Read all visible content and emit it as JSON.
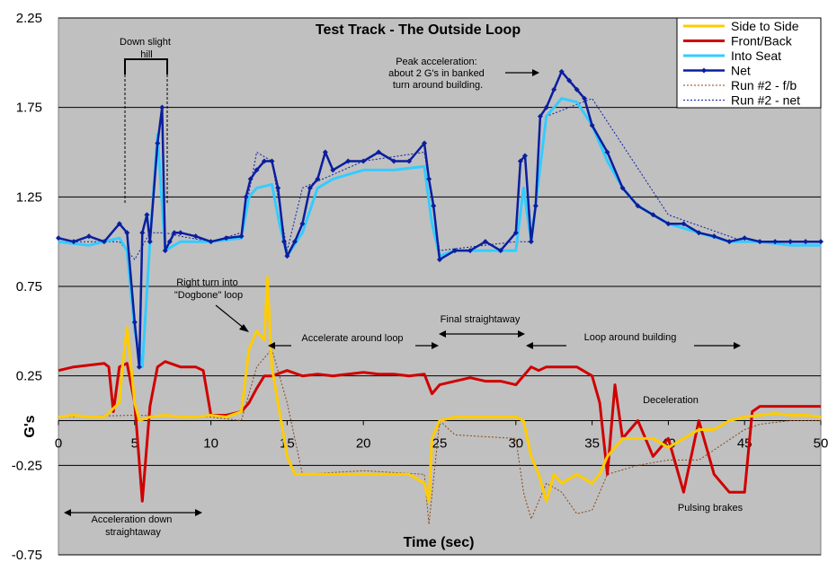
{
  "chart_data": {
    "type": "line",
    "title": "Test Track - The Outside Loop",
    "xlabel": "Time (sec)",
    "ylabel": "G's",
    "xlim": [
      0,
      50
    ],
    "ylim": [
      -0.75,
      2.25
    ],
    "x_ticks": [
      "0",
      "5",
      "10",
      "15",
      "20",
      "25",
      "30",
      "35",
      "40",
      "45",
      "50"
    ],
    "y_ticks": [
      "2.25",
      "1.75",
      "1.25",
      "0.75",
      "0.25",
      "-0.25",
      "-0.75"
    ],
    "y_tick_values": [
      2.25,
      1.75,
      1.25,
      0.75,
      0.25,
      -0.25,
      -0.75
    ],
    "grid": "horizontal",
    "legend_position": "top-right",
    "colors": {
      "side_to_side": "#FFCC00",
      "front_back": "#D00000",
      "into_seat": "#33CCFF",
      "net": "#0A1E9E",
      "run2_fb": "#8B4513",
      "run2_net": "#0A1E9E",
      "plot_background": "#C0C0C0"
    },
    "legend": [
      "Side to Side",
      "Front/Back",
      "Into Seat",
      "Net",
      "Run #2 - f/b",
      "Run #2 - net"
    ],
    "series": [
      {
        "name": "Side to Side",
        "x": [
          0,
          1,
          2,
          3,
          4,
          4.2,
          4.5,
          5,
          5.3,
          6,
          7,
          8,
          9,
          10,
          11,
          12,
          12.5,
          13,
          13.5,
          13.7,
          14,
          14.5,
          15,
          15.5,
          16,
          17,
          18,
          19,
          20,
          21,
          22,
          23,
          24,
          24.3,
          24.5,
          25,
          26,
          27,
          28,
          29,
          30,
          30.5,
          31,
          31.5,
          32,
          32.5,
          33,
          34,
          35,
          35.5,
          36,
          37,
          38,
          39,
          40,
          41,
          42,
          43,
          44,
          45,
          46,
          47,
          48,
          49,
          50
        ],
        "y": [
          0.02,
          0.03,
          0.02,
          0.02,
          0.1,
          0.3,
          0.52,
          0.1,
          0.0,
          0.02,
          0.03,
          0.02,
          0.02,
          0.03,
          0.02,
          0.05,
          0.4,
          0.5,
          0.45,
          0.8,
          0.3,
          0.05,
          -0.2,
          -0.3,
          -0.3,
          -0.3,
          -0.3,
          -0.3,
          -0.3,
          -0.3,
          -0.3,
          -0.3,
          -0.35,
          -0.45,
          -0.1,
          0.0,
          0.02,
          0.02,
          0.02,
          0.02,
          0.02,
          0.0,
          -0.2,
          -0.3,
          -0.45,
          -0.3,
          -0.35,
          -0.3,
          -0.35,
          -0.3,
          -0.2,
          -0.1,
          -0.1,
          -0.1,
          -0.15,
          -0.1,
          -0.05,
          -0.05,
          0.0,
          0.02,
          0.03,
          0.04,
          0.03,
          0.03,
          0.02
        ]
      },
      {
        "name": "Front/Back",
        "x": [
          0,
          1,
          2,
          3,
          3.3,
          3.6,
          4,
          4.5,
          5,
          5.5,
          6,
          6.5,
          7,
          8,
          9,
          9.5,
          10,
          11,
          12,
          12.5,
          13,
          13.5,
          14,
          15,
          16,
          17,
          18,
          19,
          20,
          21,
          22,
          23,
          24,
          24.5,
          25,
          26,
          27,
          28,
          29,
          30,
          31,
          31.5,
          32,
          33,
          34,
          35,
          35.5,
          36,
          36.5,
          37,
          38,
          39,
          40,
          41,
          42,
          43,
          44,
          45,
          45.5,
          46,
          47,
          48,
          49,
          50
        ],
        "y": [
          0.28,
          0.3,
          0.31,
          0.32,
          0.3,
          0.05,
          0.3,
          0.32,
          0.1,
          -0.45,
          0.08,
          0.3,
          0.33,
          0.3,
          0.3,
          0.28,
          0.03,
          0.03,
          0.05,
          0.1,
          0.18,
          0.25,
          0.25,
          0.28,
          0.25,
          0.26,
          0.25,
          0.26,
          0.27,
          0.26,
          0.26,
          0.25,
          0.26,
          0.15,
          0.2,
          0.22,
          0.24,
          0.22,
          0.22,
          0.2,
          0.3,
          0.28,
          0.3,
          0.3,
          0.3,
          0.25,
          0.1,
          -0.3,
          0.2,
          -0.1,
          0.0,
          -0.2,
          -0.1,
          -0.4,
          0.0,
          -0.3,
          -0.4,
          -0.4,
          0.05,
          0.08,
          0.08,
          0.08,
          0.08,
          0.08
        ]
      },
      {
        "name": "Into Seat",
        "x": [
          0,
          2,
          4,
          4.5,
          5,
          5.5,
          6,
          6.5,
          7,
          8,
          10,
          12,
          12.5,
          13,
          14,
          14.5,
          15,
          16,
          17,
          18,
          20,
          22,
          24,
          24.5,
          25,
          26,
          28,
          30,
          30.5,
          31,
          32,
          33,
          34,
          35,
          36,
          37,
          38,
          40,
          42,
          44,
          46,
          48,
          50
        ],
        "y": [
          1.0,
          0.98,
          1.02,
          0.95,
          0.5,
          0.3,
          1.0,
          1.6,
          0.95,
          1.0,
          1.0,
          1.02,
          1.25,
          1.3,
          1.32,
          1.1,
          0.92,
          1.05,
          1.3,
          1.35,
          1.4,
          1.4,
          1.42,
          1.1,
          0.92,
          0.95,
          0.95,
          0.95,
          1.3,
          1.0,
          1.7,
          1.8,
          1.78,
          1.65,
          1.45,
          1.3,
          1.2,
          1.1,
          1.05,
          1.0,
          1.0,
          0.98,
          0.98
        ]
      },
      {
        "name": "Net",
        "x": [
          0,
          1,
          2,
          3,
          4,
          4.5,
          5,
          5.3,
          5.5,
          5.8,
          6,
          6.5,
          6.8,
          7,
          7.3,
          7.6,
          8,
          9,
          10,
          11,
          12,
          12.3,
          12.6,
          13,
          13.5,
          14,
          14.4,
          14.8,
          15,
          15.5,
          16,
          16.5,
          17,
          17.5,
          18,
          19,
          20,
          21,
          22,
          23,
          24,
          24.3,
          24.6,
          25,
          26,
          27,
          28,
          29,
          30,
          30.3,
          30.6,
          31,
          31.3,
          31.6,
          32,
          32.5,
          33,
          33.5,
          34,
          34.5,
          35,
          36,
          37,
          38,
          39,
          40,
          41,
          42,
          43,
          44,
          45,
          46,
          47,
          48,
          49,
          50
        ],
        "y": [
          1.02,
          1.0,
          1.03,
          1.0,
          1.1,
          1.05,
          0.55,
          0.3,
          1.05,
          1.15,
          1.0,
          1.55,
          1.75,
          0.95,
          1.0,
          1.05,
          1.05,
          1.03,
          1.0,
          1.02,
          1.03,
          1.25,
          1.35,
          1.4,
          1.45,
          1.45,
          1.3,
          1.0,
          0.92,
          1.0,
          1.1,
          1.3,
          1.35,
          1.5,
          1.4,
          1.45,
          1.45,
          1.5,
          1.45,
          1.45,
          1.55,
          1.35,
          1.2,
          0.9,
          0.95,
          0.95,
          1.0,
          0.95,
          1.05,
          1.45,
          1.48,
          1.0,
          1.2,
          1.7,
          1.75,
          1.85,
          1.95,
          1.9,
          1.85,
          1.8,
          1.65,
          1.5,
          1.3,
          1.2,
          1.15,
          1.1,
          1.1,
          1.05,
          1.03,
          1.0,
          1.02,
          1.0,
          1.0,
          1.0,
          1.0,
          1.0
        ]
      },
      {
        "name": "Run #2 - f/b",
        "x": [
          0,
          5,
          10,
          12,
          13,
          14,
          15,
          16,
          20,
          24,
          24.3,
          25,
          26,
          30,
          30.5,
          31,
          32,
          33,
          34,
          35,
          36,
          38,
          40,
          42,
          45,
          46,
          48,
          50
        ],
        "y": [
          0.02,
          0.03,
          0.02,
          0.0,
          0.3,
          0.4,
          0.1,
          -0.3,
          -0.28,
          -0.3,
          -0.58,
          0.0,
          -0.08,
          -0.1,
          -0.4,
          -0.55,
          -0.35,
          -0.4,
          -0.52,
          -0.5,
          -0.3,
          -0.25,
          -0.22,
          -0.22,
          -0.05,
          -0.02,
          0.0,
          0.0
        ]
      },
      {
        "name": "Run #2 - net",
        "x": [
          0,
          4,
          5,
          6,
          7,
          8,
          10,
          12,
          13,
          14,
          15,
          16,
          20,
          24,
          25,
          30,
          31,
          32,
          35,
          40,
          45,
          50
        ],
        "y": [
          1.0,
          1.0,
          0.9,
          1.05,
          1.05,
          1.03,
          1.0,
          1.05,
          1.5,
          1.45,
          0.95,
          1.3,
          1.45,
          1.5,
          0.95,
          1.0,
          1.0,
          1.7,
          1.8,
          1.15,
          1.0,
          1.0
        ]
      }
    ],
    "annotations": {
      "down_slight_hill": "Down slight hill",
      "peak_acceleration": "Peak acceleration: about 2 G's in banked turn around building.",
      "right_turn": "Right turn into \"Dogbone\" loop",
      "accelerate_loop": "Accelerate around loop",
      "final_straightaway": "Final straightaway",
      "loop_around_building": "Loop around building",
      "deceleration": "Deceleration",
      "pulsing_brakes": "Pulsing brakes",
      "acceleration_down": "Acceleration down straightaway"
    }
  }
}
